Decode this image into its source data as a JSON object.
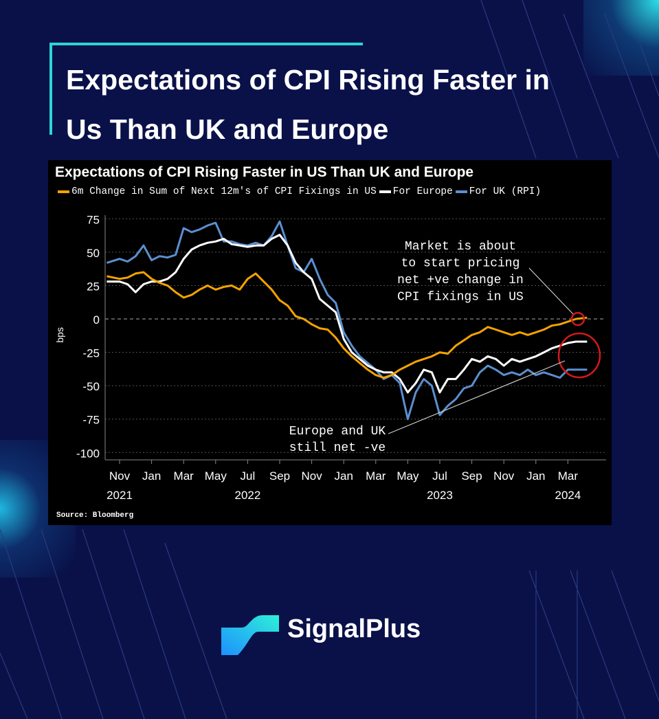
{
  "headline": {
    "line1": "Expectations of CPI Rising Faster in",
    "line2": "Us Than UK and Europe"
  },
  "brand": {
    "name": "SignalPlus"
  },
  "colors": {
    "background": "#0a1149",
    "accent": "#2dd4d8",
    "us": "#f5a300",
    "europe": "#ffffff",
    "uk": "#5b8fd0",
    "highlight": "#d11a1a"
  },
  "chart_data": {
    "type": "line",
    "title": "Expectations of CPI Rising Faster in US Than UK and Europe",
    "ylabel": "bps",
    "xlabel": "",
    "ylim": [
      -100,
      75
    ],
    "yticks": [
      75,
      50,
      25,
      0,
      -25,
      -50,
      -75,
      -100
    ],
    "grid": true,
    "x_units": "months since Nov 2021",
    "xticks": [
      {
        "month": "Nov",
        "year": "2021",
        "t": 0
      },
      {
        "month": "Jan",
        "year": "",
        "t": 2
      },
      {
        "month": "Mar",
        "year": "",
        "t": 4
      },
      {
        "month": "May",
        "year": "",
        "t": 6
      },
      {
        "month": "Jul",
        "year": "2022",
        "t": 8
      },
      {
        "month": "Sep",
        "year": "",
        "t": 10
      },
      {
        "month": "Nov",
        "year": "",
        "t": 12
      },
      {
        "month": "Jan",
        "year": "",
        "t": 14
      },
      {
        "month": "Mar",
        "year": "",
        "t": 16
      },
      {
        "month": "May",
        "year": "",
        "t": 18
      },
      {
        "month": "Jul",
        "year": "2023",
        "t": 20
      },
      {
        "month": "Sep",
        "year": "",
        "t": 22
      },
      {
        "month": "Nov",
        "year": "",
        "t": 24
      },
      {
        "month": "Jan",
        "year": "",
        "t": 26
      },
      {
        "month": "Mar",
        "year": "2024",
        "t": 28
      }
    ],
    "series": [
      {
        "name": "6m Change in Sum of Next 12m's of CPI Fixings in US",
        "color": "#f5a300",
        "values": [
          32,
          30,
          31,
          34,
          35,
          30,
          27,
          25,
          20,
          16,
          18,
          22,
          25,
          22,
          24,
          25,
          22,
          30,
          34,
          28,
          22,
          14,
          10,
          2,
          0,
          -4,
          -7,
          -8,
          -14,
          -22,
          -28,
          -33,
          -38,
          -42,
          -44,
          -42,
          -38,
          -35,
          -32,
          -30,
          -28,
          -25,
          -26,
          -20,
          -16,
          -12,
          -10,
          -6,
          -8,
          -10,
          -12,
          -10,
          -12,
          -10,
          -8,
          -5,
          -4,
          -2,
          0,
          1
        ]
      },
      {
        "name": "For Europe",
        "color": "#ffffff",
        "values": [
          28,
          28,
          26,
          20,
          26,
          28,
          28,
          30,
          35,
          45,
          52,
          55,
          57,
          58,
          60,
          56,
          55,
          54,
          55,
          55,
          60,
          63,
          55,
          42,
          35,
          30,
          15,
          10,
          5,
          -15,
          -25,
          -30,
          -35,
          -38,
          -40,
          -40,
          -45,
          -55,
          -48,
          -38,
          -40,
          -55,
          -45,
          -45,
          -38,
          -30,
          -32,
          -28,
          -30,
          -35,
          -30,
          -32,
          -30,
          -28,
          -25,
          -22,
          -20,
          -18,
          -17,
          -17
        ]
      },
      {
        "name": "For UK (RPI)",
        "color": "#5b8fd0",
        "values": [
          42,
          45,
          43,
          47,
          55,
          44,
          47,
          46,
          48,
          68,
          65,
          67,
          70,
          72,
          58,
          58,
          56,
          55,
          57,
          55,
          62,
          73,
          55,
          38,
          35,
          45,
          30,
          18,
          12,
          -10,
          -20,
          -28,
          -33,
          -38,
          -45,
          -42,
          -48,
          -75,
          -55,
          -45,
          -50,
          -72,
          -65,
          -60,
          -52,
          -50,
          -40,
          -35,
          -38,
          -42,
          -40,
          -42,
          -38,
          -42,
          -40,
          -42,
          -44,
          -38,
          -38,
          -38
        ]
      }
    ],
    "annotations": [
      {
        "lines": [
          "Market is about",
          "to start pricing",
          "net +ve change in",
          "CPI fixings in US"
        ]
      },
      {
        "lines": [
          "Europe and UK",
          "still net -ve"
        ]
      }
    ],
    "legend": {
      "position": "top-left",
      "entries": [
        "6m Change in Sum of Next 12m's of CPI Fixings in US",
        "For Europe",
        "For UK (RPI)"
      ]
    },
    "source": "Source: Bloomberg"
  }
}
